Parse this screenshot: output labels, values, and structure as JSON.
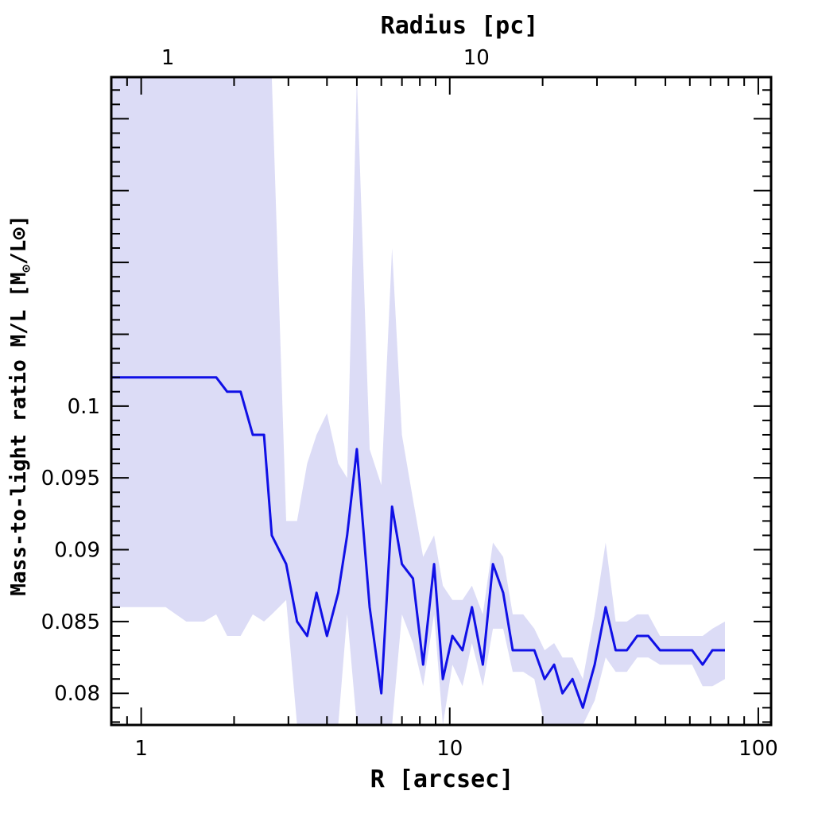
{
  "chart_data": {
    "type": "line",
    "xlabel": "R [arcsec]",
    "ylabel": "Mass-to-light ratio M/L [M",
    "ylabel_sun1": "⊙",
    "ylabel_mid": "/L",
    "ylabel_sun2": "⊙",
    "ylabel_end": "]",
    "top_xlabel": "Radius [pc]",
    "x_scale": "log",
    "xlim": [
      0.8,
      110
    ],
    "ylim": [
      0.0778,
      0.1229
    ],
    "x_ticklabels": [
      "1",
      "10",
      "100"
    ],
    "y_ticklabels": [
      "0.08",
      "0.085",
      "0.09",
      "0.095",
      "0.1"
    ],
    "top_ticklabels": [
      "1",
      "10"
    ],
    "grid": false,
    "colors": {
      "line": "#1010e6",
      "band": "#dcdcf6",
      "frame": "#000000"
    },
    "series": [
      {
        "x": [
          0.8,
          1.0,
          1.2,
          1.4,
          1.6,
          1.75,
          1.9,
          2.1,
          2.3,
          2.5,
          2.65,
          2.95,
          3.2,
          3.45,
          3.7,
          4.0,
          4.35,
          4.65,
          5.0,
          5.5,
          6.0,
          6.5,
          7.0,
          7.6,
          8.2,
          8.9,
          9.5,
          10.2,
          11.0,
          11.8,
          12.8,
          13.8,
          14.9,
          16.0,
          17.3,
          18.8,
          20.3,
          21.8,
          23.2,
          25.0,
          27.0,
          29.5,
          32.0,
          34.5,
          37.5,
          40.5,
          44.0,
          48.0,
          52.0,
          56.5,
          61.0,
          66.0,
          71.0,
          78.0
        ],
        "y": [
          0.102,
          0.102,
          0.102,
          0.102,
          0.102,
          0.102,
          0.101,
          0.101,
          0.098,
          0.098,
          0.091,
          0.089,
          0.085,
          0.084,
          0.087,
          0.084,
          0.087,
          0.091,
          0.097,
          0.086,
          0.08,
          0.093,
          0.089,
          0.088,
          0.082,
          0.089,
          0.081,
          0.084,
          0.083,
          0.086,
          0.082,
          0.089,
          0.087,
          0.083,
          0.083,
          0.083,
          0.081,
          0.082,
          0.08,
          0.081,
          0.079,
          0.082,
          0.086,
          0.083,
          0.083,
          0.084,
          0.084,
          0.083,
          0.083,
          0.083,
          0.083,
          0.082,
          0.083,
          0.083
        ],
        "upper": [
          0.1229,
          0.1229,
          0.1229,
          0.1229,
          0.1229,
          0.1229,
          0.1229,
          0.1229,
          0.1229,
          0.1229,
          0.1229,
          0.092,
          0.092,
          0.096,
          0.098,
          0.0995,
          0.096,
          0.095,
          0.1229,
          0.097,
          0.0945,
          0.111,
          0.098,
          0.0935,
          0.0895,
          0.091,
          0.0875,
          0.0865,
          0.0865,
          0.0875,
          0.0855,
          0.0905,
          0.0895,
          0.0855,
          0.0855,
          0.0845,
          0.083,
          0.0835,
          0.0825,
          0.0825,
          0.081,
          0.0855,
          0.0905,
          0.085,
          0.085,
          0.0855,
          0.0855,
          0.084,
          0.084,
          0.084,
          0.084,
          0.084,
          0.0845,
          0.085
        ],
        "lower": [
          0.086,
          0.086,
          0.086,
          0.085,
          0.085,
          0.0855,
          0.084,
          0.084,
          0.0855,
          0.085,
          0.0855,
          0.0865,
          0.0778,
          0.0778,
          0.0778,
          0.0778,
          0.0778,
          0.0855,
          0.0778,
          0.0778,
          0.0778,
          0.0778,
          0.0855,
          0.0835,
          0.0805,
          0.0855,
          0.0778,
          0.082,
          0.0805,
          0.0835,
          0.0805,
          0.0845,
          0.0845,
          0.0815,
          0.0815,
          0.081,
          0.0778,
          0.0778,
          0.0778,
          0.0778,
          0.0778,
          0.0795,
          0.0825,
          0.0815,
          0.0815,
          0.0825,
          0.0825,
          0.082,
          0.082,
          0.082,
          0.082,
          0.0805,
          0.0805,
          0.081
        ]
      }
    ]
  }
}
